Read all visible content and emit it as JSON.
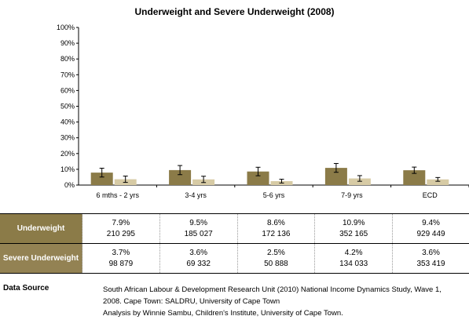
{
  "chart_data": {
    "type": "bar",
    "title": "Underweight and Severe Underweight (2008)",
    "categories": [
      "6 mths - 2 yrs",
      "3-4 yrs",
      "5-6 yrs",
      "7-9 yrs",
      "ECD"
    ],
    "series": [
      {
        "name": "Underweight",
        "values": [
          7.9,
          9.5,
          8.6,
          10.9,
          9.4
        ],
        "error": [
          2.8,
          2.9,
          2.7,
          2.8,
          2.0
        ]
      },
      {
        "name": "Severe Underweight",
        "values": [
          3.7,
          3.6,
          2.5,
          4.2,
          3.6
        ],
        "error": [
          2.0,
          2.0,
          1.2,
          1.8,
          1.2
        ]
      }
    ],
    "y_ticks": [
      "0%",
      "10%",
      "20%",
      "30%",
      "40%",
      "50%",
      "60%",
      "70%",
      "80%",
      "90%",
      "100%"
    ],
    "ylim": [
      0,
      100
    ],
    "colors": {
      "underweight": "#8b7b48",
      "severe": "#d7cba5"
    },
    "grid": false
  },
  "table": {
    "rows": [
      {
        "label": "Underweight",
        "cells": [
          {
            "pct": "7.9%",
            "n": "210 295"
          },
          {
            "pct": "9.5%",
            "n": "185 027"
          },
          {
            "pct": "8.6%",
            "n": "172 136"
          },
          {
            "pct": "10.9%",
            "n": "352 165"
          },
          {
            "pct": "9.4%",
            "n": "929 449"
          }
        ]
      },
      {
        "label": "Severe Underweight",
        "cells": [
          {
            "pct": "3.7%",
            "n": "98 879"
          },
          {
            "pct": "3.6%",
            "n": "69 332"
          },
          {
            "pct": "2.5%",
            "n": "50 888"
          },
          {
            "pct": "4.2%",
            "n": "134 033"
          },
          {
            "pct": "3.6%",
            "n": "353 419"
          }
        ]
      }
    ]
  },
  "source": {
    "label": "Data Source",
    "lines": [
      "South African Labour & Development Research Unit (2010) National Income Dynamics Study, Wave 1,",
      "2008. Cape Town: SALDRU, University of Cape Town",
      "Analysis by Winnie Sambu, Children's Institute, University of Cape Town."
    ]
  }
}
